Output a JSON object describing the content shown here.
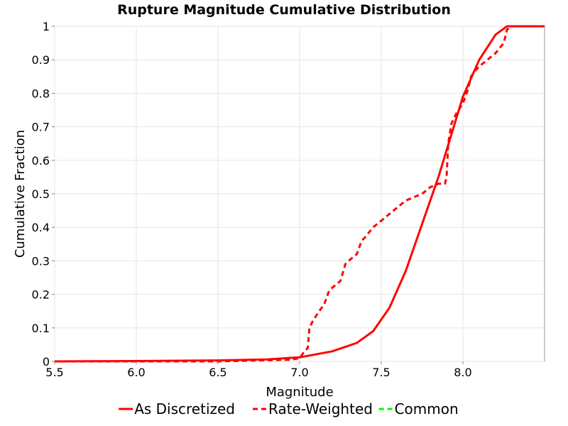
{
  "chart_data": {
    "type": "line",
    "title": "Rupture Magnitude Cumulative Distribution",
    "xlabel": "Magnitude",
    "ylabel": "Cumulative Fraction",
    "xlim": [
      5.5,
      8.5
    ],
    "ylim": [
      0,
      1
    ],
    "x_ticks": [
      "5.5",
      "6.0",
      "6.5",
      "7.0",
      "7.5",
      "8.0"
    ],
    "y_ticks": [
      "0",
      "0.1",
      "0.2",
      "0.3",
      "0.4",
      "0.5",
      "0.6",
      "0.7",
      "0.8",
      "0.9",
      "1"
    ],
    "grid": true,
    "legend_position": "bottom",
    "series": [
      {
        "name": "As Discretized",
        "color": "#ff0000",
        "dash": "solid",
        "x": [
          5.5,
          6.0,
          6.5,
          6.8,
          7.0,
          7.2,
          7.35,
          7.45,
          7.55,
          7.65,
          7.75,
          7.85,
          7.9,
          7.95,
          8.0,
          8.1,
          8.2,
          8.27,
          8.3,
          8.5
        ],
        "y": [
          0.0,
          0.001,
          0.003,
          0.006,
          0.012,
          0.03,
          0.055,
          0.09,
          0.16,
          0.27,
          0.41,
          0.55,
          0.63,
          0.71,
          0.79,
          0.9,
          0.975,
          1.0,
          1.0,
          1.0
        ]
      },
      {
        "name": "Rate-Weighted",
        "color": "#ff0000",
        "dash": "dashed",
        "x": [
          5.5,
          6.5,
          6.95,
          7.0,
          7.03,
          7.05,
          7.06,
          7.08,
          7.12,
          7.15,
          7.18,
          7.2,
          7.25,
          7.28,
          7.3,
          7.35,
          7.38,
          7.4,
          7.45,
          7.5,
          7.55,
          7.6,
          7.65,
          7.7,
          7.75,
          7.8,
          7.85,
          7.89,
          7.9,
          7.91,
          7.93,
          7.96,
          8.0,
          8.03,
          8.05,
          8.08,
          8.1,
          8.15,
          8.2,
          8.25,
          8.27,
          8.3,
          8.35,
          8.5
        ],
        "y": [
          0.0,
          0.0,
          0.005,
          0.01,
          0.03,
          0.04,
          0.1,
          0.12,
          0.15,
          0.17,
          0.21,
          0.22,
          0.24,
          0.29,
          0.3,
          0.32,
          0.36,
          0.37,
          0.4,
          0.42,
          0.44,
          0.46,
          0.48,
          0.49,
          0.5,
          0.52,
          0.53,
          0.53,
          0.55,
          0.65,
          0.71,
          0.74,
          0.77,
          0.81,
          0.85,
          0.87,
          0.88,
          0.9,
          0.92,
          0.95,
          0.99,
          1.0,
          1.0,
          1.0
        ]
      },
      {
        "name": "Common",
        "color": "#00ff00",
        "dash": "dashed",
        "x": [],
        "y": []
      }
    ]
  }
}
